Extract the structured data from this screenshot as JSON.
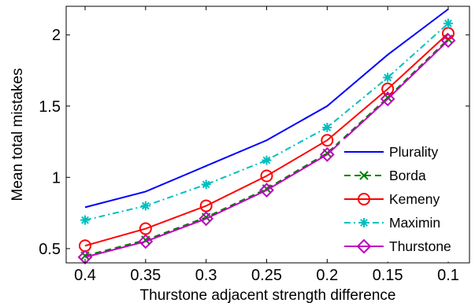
{
  "chart_data": {
    "type": "line",
    "title": "",
    "xlabel": "Thurstone adjacent strength difference",
    "ylabel": "Mean total mistakes",
    "x": [
      "0.4",
      "0.35",
      "0.3",
      "0.25",
      "0.2",
      "0.15",
      "0.1"
    ],
    "ylim": [
      0.4,
      2.2
    ],
    "yticks": [
      "0.5",
      "1",
      "1.5",
      "2"
    ],
    "ytick_values": [
      0.5,
      1,
      1.5,
      2
    ],
    "grid": false,
    "legend_position": "bottom-right",
    "series": [
      {
        "name": "Plurality",
        "color": "#0000ff",
        "dash": "solid",
        "marker": "none",
        "values": [
          0.79,
          0.9,
          1.08,
          1.26,
          1.5,
          1.86,
          2.18
        ]
      },
      {
        "name": "Borda",
        "color": "#008000",
        "dash": "dashed",
        "marker": "x",
        "values": [
          0.45,
          0.56,
          0.72,
          0.92,
          1.17,
          1.56,
          1.97
        ]
      },
      {
        "name": "Kemeny",
        "color": "#ff0000",
        "dash": "solid",
        "marker": "circle",
        "values": [
          0.52,
          0.64,
          0.8,
          1.01,
          1.26,
          1.62,
          2.01
        ]
      },
      {
        "name": "Maximin",
        "color": "#00bfbf",
        "dash": "dashdot",
        "marker": "asterisk",
        "values": [
          0.7,
          0.8,
          0.95,
          1.12,
          1.35,
          1.7,
          2.08
        ]
      },
      {
        "name": "Thurstone",
        "color": "#bf00bf",
        "dash": "solid",
        "marker": "diamond",
        "values": [
          0.44,
          0.55,
          0.71,
          0.91,
          1.16,
          1.55,
          1.96
        ]
      }
    ]
  }
}
